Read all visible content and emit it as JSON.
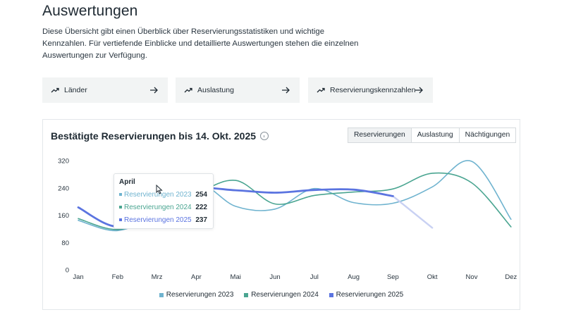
{
  "page": {
    "title": "Auswertungen",
    "intro_lines": [
      "Diese Übersicht gibt einen Überblick über Reservierungsstatistiken und wichtige",
      "Kennzahlen. Für vertiefende Einblicke und detaillierte Auswertungen stehen die einzelnen",
      "Auswertungen zur Verfügung."
    ]
  },
  "quick_links": [
    {
      "label": "Länder",
      "icon": "trend-up-icon"
    },
    {
      "label": "Auslastung",
      "icon": "trend-up-icon"
    },
    {
      "label": "Reservierungskennzahlen",
      "icon": "trend-up-icon"
    }
  ],
  "card": {
    "title": "Bestätigte Reservierungen bis 14. Okt. 2025",
    "tabs": [
      {
        "label": "Reservierungen",
        "active": true
      },
      {
        "label": "Auslastung",
        "active": false
      },
      {
        "label": "Nächtigungen",
        "active": false
      }
    ]
  },
  "tooltip": {
    "title": "April",
    "rows": [
      {
        "label": "Reservierungen 2023",
        "value": "254",
        "color": "#6fb3cf"
      },
      {
        "label": "Reservierungen 2024",
        "value": "222",
        "color": "#4aa591"
      },
      {
        "label": "Reservierungen 2025",
        "value": "237",
        "color": "#5b74e0"
      }
    ]
  },
  "colors": {
    "series_2023": "#6fb3cf",
    "series_2024": "#4aa591",
    "series_2025": "#5b74e0",
    "series_2025_forecast": "#c9d1f3"
  },
  "chart_data": {
    "type": "line",
    "categories": [
      "Jan",
      "Feb",
      "Mrz",
      "Apr",
      "Mai",
      "Jun",
      "Jul",
      "Aug",
      "Sep",
      "Okt",
      "Nov",
      "Dez"
    ],
    "y_ticks": [
      0,
      80,
      160,
      240,
      320
    ],
    "ylim": [
      0,
      320
    ],
    "grid": false,
    "legend_position": "bottom-center",
    "series": [
      {
        "name": "Reservierungen 2023",
        "values": [
          145,
          115,
          165,
          254,
          186,
          178,
          238,
          197,
          195,
          243,
          318,
          148
        ]
      },
      {
        "name": "Reservierungen 2024",
        "values": [
          150,
          118,
          160,
          222,
          262,
          193,
          218,
          228,
          237,
          283,
          255,
          126
        ]
      },
      {
        "name": "Reservierungen 2025",
        "values": [
          183,
          127,
          190,
          237,
          233,
          226,
          234,
          235,
          216,
          123,
          null,
          null
        ]
      }
    ],
    "partial_from_index": 8
  }
}
